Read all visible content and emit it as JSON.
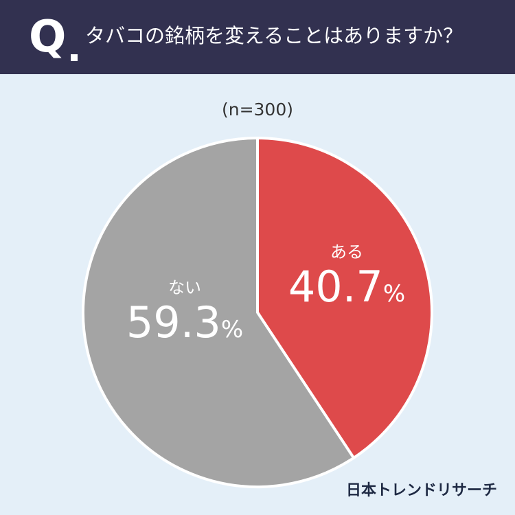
{
  "header": {
    "q_mark": "Q",
    "question": "タバコの銘柄を変えることはありますか？"
  },
  "sample_size": "(n=300)",
  "chart_data": {
    "type": "pie",
    "title": "タバコの銘柄を変えることはありますか？",
    "slices": [
      {
        "label": "ある",
        "value": 40.7,
        "display": "40.7",
        "color": "#de4a4b"
      },
      {
        "label": "ない",
        "value": 59.3,
        "display": "59.3",
        "color": "#a4a4a4"
      }
    ],
    "unit": "%",
    "start": "12 o'clock",
    "direction": "clockwise"
  },
  "footer": {
    "brand": "日本トレンドリサーチ"
  }
}
